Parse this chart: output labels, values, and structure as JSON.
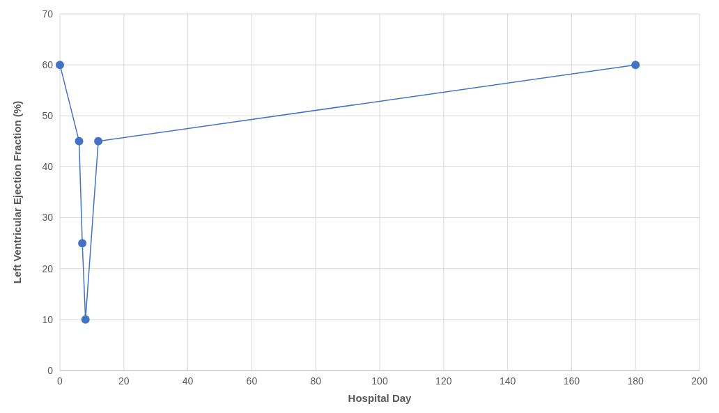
{
  "chart_data": {
    "type": "line",
    "xlabel": "Hospital Day",
    "ylabel": "Left Ventricular Ejection Fraction (%)",
    "x": [
      0,
      6,
      7,
      8,
      12,
      180
    ],
    "series": [
      {
        "color": "#4472c4",
        "values": [
          60,
          45,
          25,
          10,
          45,
          60
        ]
      }
    ],
    "xlim": [
      0,
      200
    ],
    "xticks": [
      0,
      20,
      40,
      60,
      80,
      100,
      120,
      140,
      160,
      180,
      200
    ],
    "ylim": [
      0,
      70
    ],
    "yticks": [
      0,
      10,
      20,
      30,
      40,
      50,
      60,
      70
    ],
    "grid": true,
    "marker": "circle",
    "line_style": "solid"
  }
}
